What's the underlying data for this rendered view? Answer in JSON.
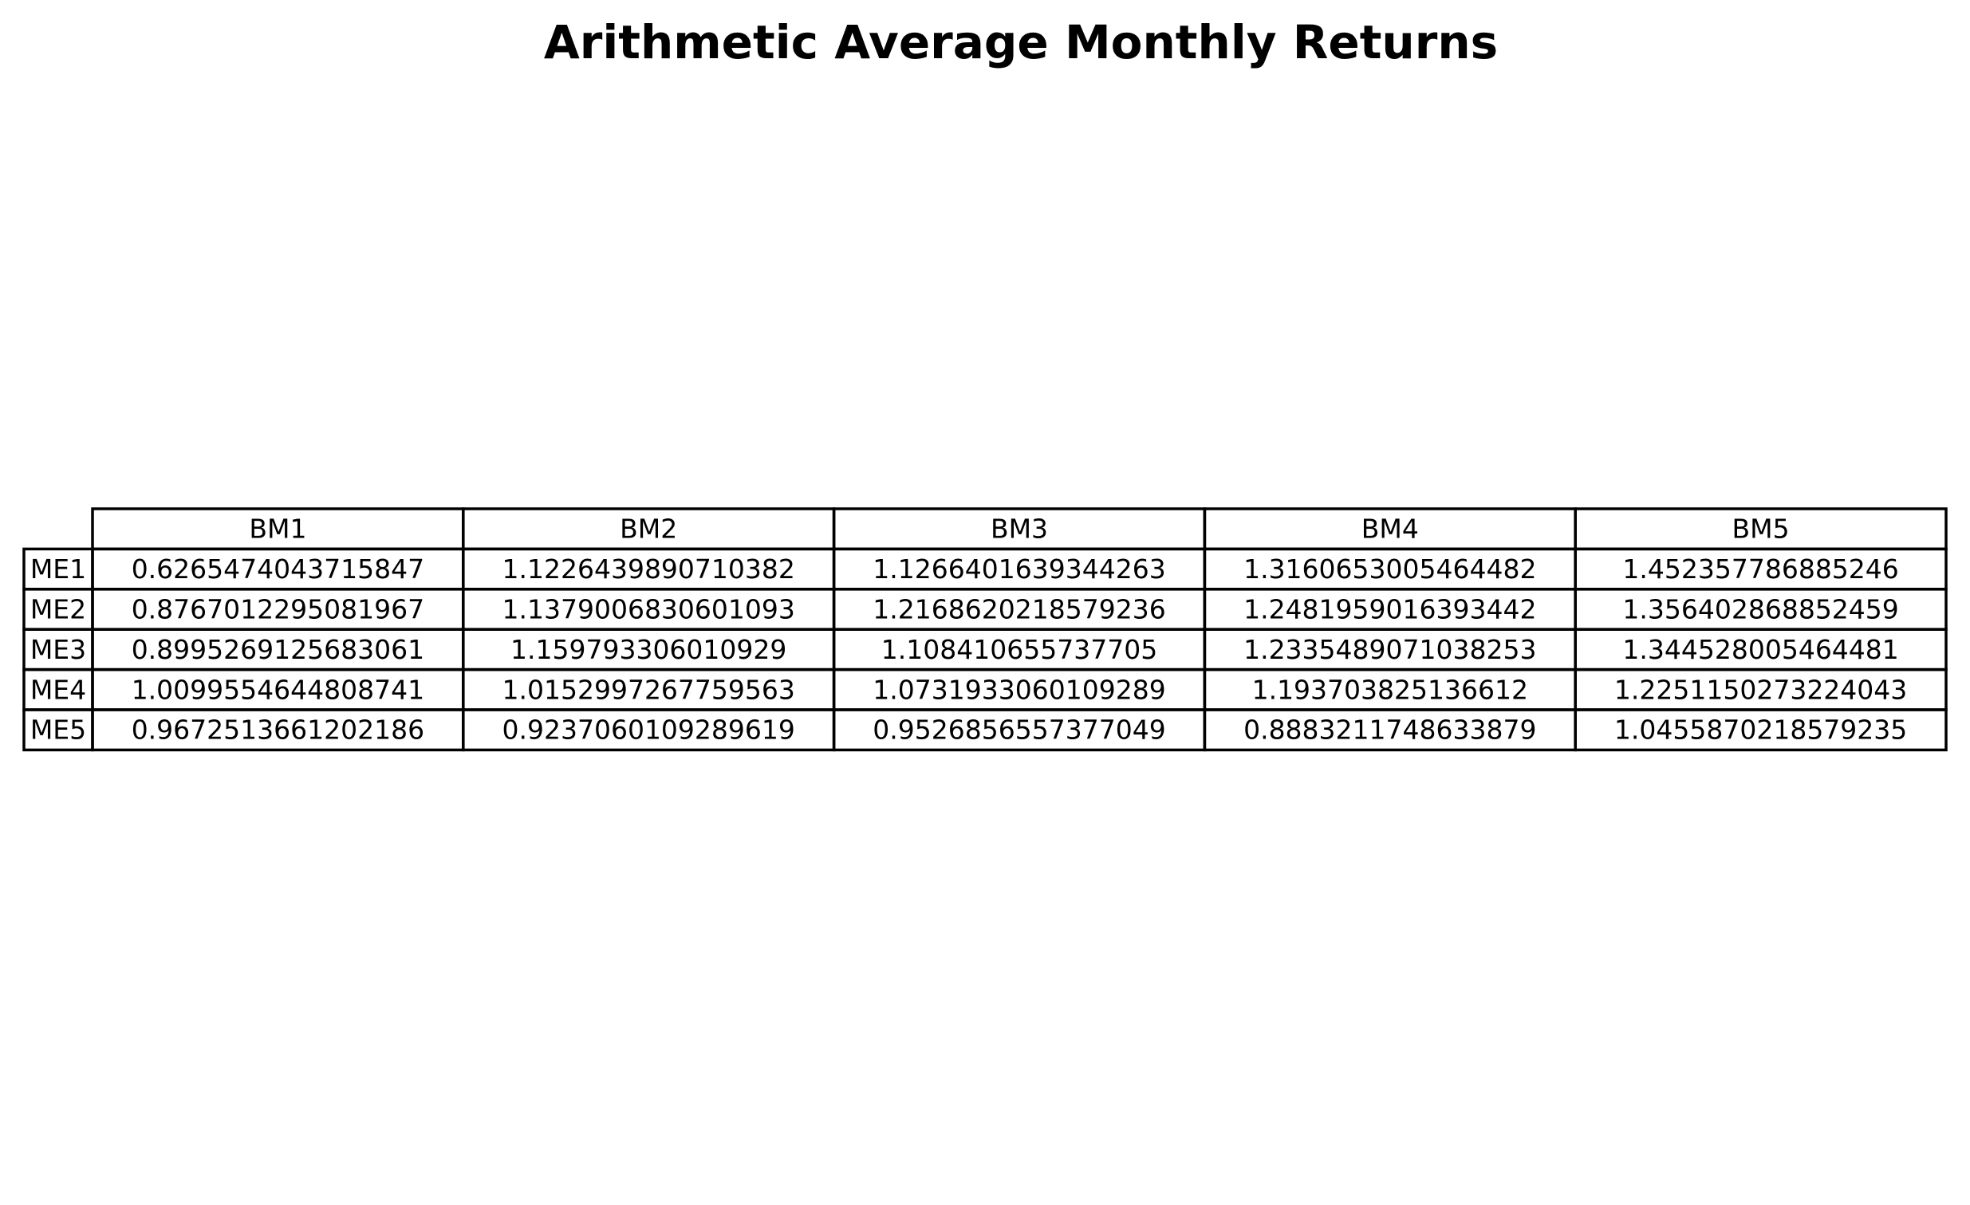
{
  "chart_data": {
    "type": "table",
    "title": "Arithmetic Average Monthly Returns",
    "columns": [
      "BM1",
      "BM2",
      "BM3",
      "BM4",
      "BM5"
    ],
    "rows": [
      {
        "label": "ME1",
        "values": [
          "0.6265474043715847",
          "1.1226439890710382",
          "1.1266401639344263",
          "1.3160653005464482",
          "1.452357786885246"
        ]
      },
      {
        "label": "ME2",
        "values": [
          "0.8767012295081967",
          "1.1379006830601093",
          "1.2168620218579236",
          "1.2481959016393442",
          "1.356402868852459"
        ]
      },
      {
        "label": "ME3",
        "values": [
          "0.8995269125683061",
          "1.159793306010929",
          "1.108410655737705",
          "1.2335489071038253",
          "1.344528005464481"
        ]
      },
      {
        "label": "ME4",
        "values": [
          "1.0099554644808741",
          "1.0152997267759563",
          "1.0731933060109289",
          "1.193703825136612",
          "1.2251150273224043"
        ]
      },
      {
        "label": "ME5",
        "values": [
          "0.9672513661202186",
          "0.9237060109289619",
          "0.9526856557377049",
          "0.8883211748633879",
          "1.0455870218579235"
        ]
      }
    ]
  }
}
